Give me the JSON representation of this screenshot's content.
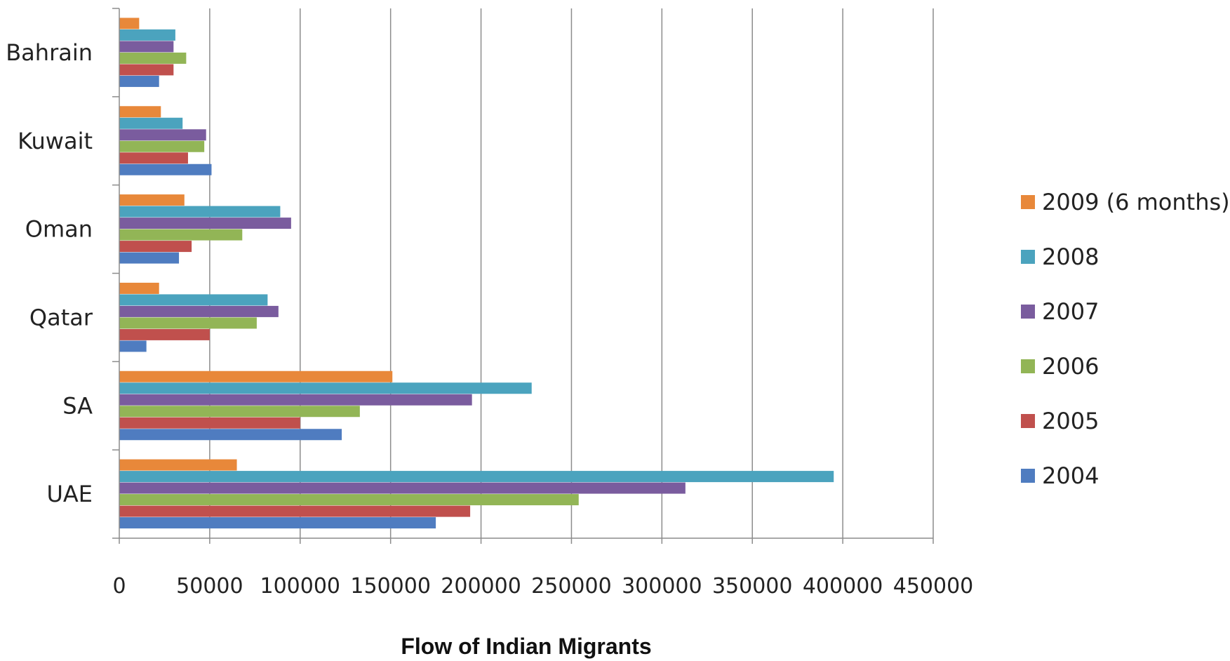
{
  "chart_data": {
    "type": "bar",
    "orientation": "horizontal",
    "title": "",
    "xlabel": "Flow of Indian Migrants",
    "ylabel": "",
    "xlim": [
      0,
      450000
    ],
    "xticks": [
      "0",
      "50000",
      "100000",
      "150000",
      "200000",
      "250000",
      "300000",
      "350000",
      "400000",
      "450000"
    ],
    "grid": true,
    "legend_position": "right",
    "categories": [
      "Bahrain",
      "Kuwait",
      "Oman",
      "Qatar",
      "SA",
      "UAE"
    ],
    "series": [
      {
        "name": "2009 (6 months)",
        "color": "#E8883A",
        "values": [
          11000,
          23000,
          36000,
          22000,
          151000,
          65000
        ]
      },
      {
        "name": "2008",
        "color": "#4BA3BE",
        "values": [
          31000,
          35000,
          89000,
          82000,
          228000,
          395000
        ]
      },
      {
        "name": "2007",
        "color": "#7A5C9E",
        "values": [
          30000,
          48000,
          95000,
          88000,
          195000,
          313000
        ]
      },
      {
        "name": "2006",
        "color": "#92B556",
        "values": [
          37000,
          47000,
          68000,
          76000,
          133000,
          254000
        ]
      },
      {
        "name": "2005",
        "color": "#C0504D",
        "values": [
          30000,
          38000,
          40000,
          50000,
          100000,
          194000
        ]
      },
      {
        "name": "2004",
        "color": "#4F7CC0",
        "values": [
          22000,
          51000,
          33000,
          15000,
          123000,
          175000
        ]
      }
    ]
  }
}
